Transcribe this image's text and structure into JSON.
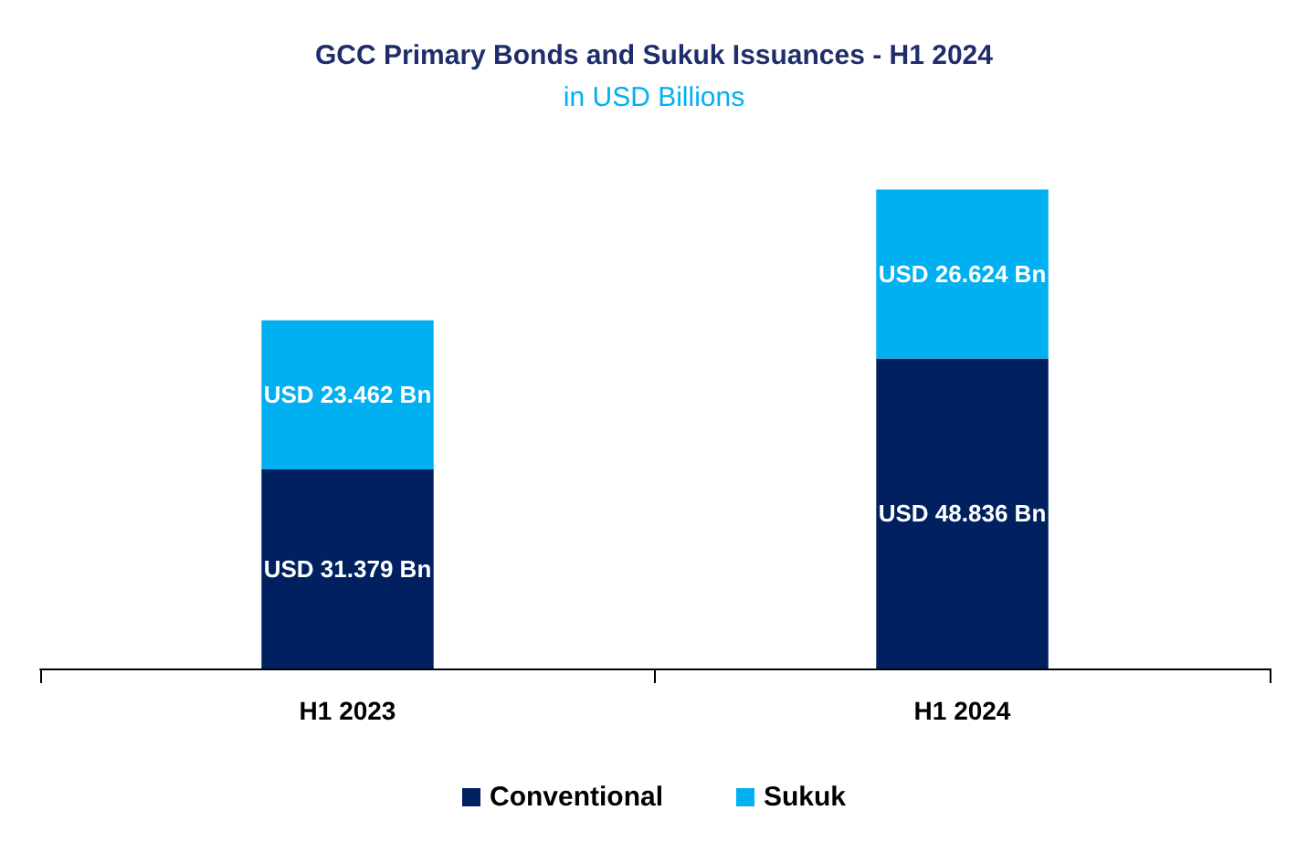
{
  "chart_data": {
    "type": "bar",
    "title": "GCC Primary Bonds and Sukuk Issuances - H1 2024",
    "subtitle": "in USD Billions",
    "categories": [
      "H1 2023",
      "H1 2024"
    ],
    "series": [
      {
        "name": "Conventional",
        "color": "#002060",
        "values": [
          31.379,
          48.836
        ],
        "value_labels": [
          "USD 31.379 Bn",
          "USD 48.836 Bn"
        ]
      },
      {
        "name": "Sukuk",
        "color": "#00b0f0",
        "values": [
          23.462,
          26.624
        ],
        "value_labels": [
          "USD 23.462 Bn",
          "USD 26.624 Bn"
        ]
      }
    ],
    "stacked": true,
    "legend": "bottom",
    "tick_labels": "x"
  }
}
